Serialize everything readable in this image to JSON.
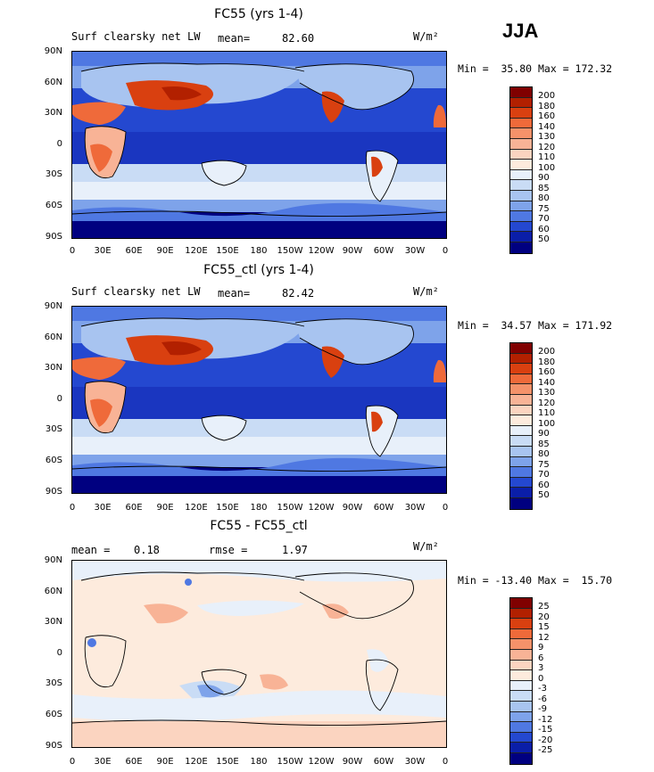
{
  "season": "JJA",
  "lat_labels": [
    "90N",
    "60N",
    "30N",
    "0",
    "30S",
    "60S",
    "90S"
  ],
  "lon_labels": [
    "0",
    "30E",
    "60E",
    "90E",
    "120E",
    "150E",
    "180",
    "150W",
    "120W",
    "90W",
    "60W",
    "30W",
    "0"
  ],
  "panels": [
    {
      "id": "top",
      "title": "FC55 (yrs 1-4)",
      "left_label": "Surf clearsky net LW",
      "stat_label": "mean=",
      "stat_value": "82.60",
      "units": "W/m²",
      "min_max": "Min =  35.80 Max = 172.32",
      "colorbar_labels": [
        "200",
        "180",
        "160",
        "140",
        "130",
        "120",
        "110",
        "100",
        "90",
        "85",
        "80",
        "75",
        "70",
        "60",
        "50"
      ]
    },
    {
      "id": "middle",
      "title": "FC55_ctl (yrs 1-4)",
      "left_label": "Surf clearsky net LW",
      "stat_label": "mean=",
      "stat_value": "82.42",
      "units": "W/m²",
      "min_max": "Min =  34.57 Max = 171.92",
      "colorbar_labels": [
        "200",
        "180",
        "160",
        "140",
        "130",
        "120",
        "110",
        "100",
        "90",
        "85",
        "80",
        "75",
        "70",
        "60",
        "50"
      ]
    },
    {
      "id": "bottom",
      "title": "FC55 - FC55_ctl",
      "left_label": "mean =",
      "left_value": "0.18",
      "stat_label": "rmse =",
      "stat_value": "1.97",
      "units": "W/m²",
      "min_max": "Min = -13.40 Max =  15.70",
      "colorbar_labels": [
        "25",
        "20",
        "15",
        "12",
        "9",
        "6",
        "3",
        "0",
        "-3",
        "-6",
        "-9",
        "-12",
        "-15",
        "-20",
        "-25"
      ]
    }
  ],
  "colors": {
    "abs_scale": [
      "#800000",
      "#b22000",
      "#d94010",
      "#ef6a3a",
      "#f5926a",
      "#f8b396",
      "#fbd4c0",
      "#fdebdd",
      "#e8f0fa",
      "#c9dcf5",
      "#a8c4f0",
      "#7ea3ea",
      "#4f78e2",
      "#2448d0",
      "#0a1ea8",
      "#000080"
    ],
    "diff_scale": [
      "#800000",
      "#b22000",
      "#d94010",
      "#ef6a3a",
      "#f5926a",
      "#f8b396",
      "#fbd4c0",
      "#fdebdd",
      "#e8f0fa",
      "#c9dcf5",
      "#a8c4f0",
      "#7ea3ea",
      "#4f78e2",
      "#2448d0",
      "#0a1ea8",
      "#000080"
    ]
  }
}
